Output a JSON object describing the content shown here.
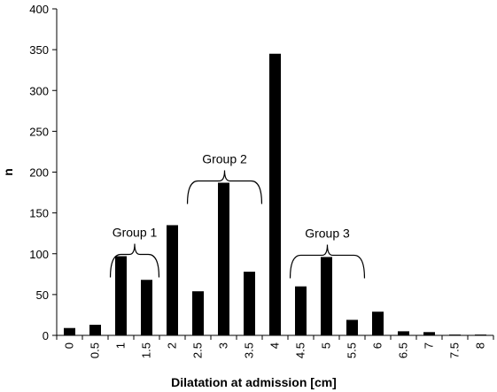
{
  "chart_data": {
    "type": "bar",
    "title": "",
    "xlabel": "Dilatation at admission [cm]",
    "ylabel": "n",
    "ylim": [
      0,
      400
    ],
    "yticks": [
      0,
      50,
      100,
      150,
      200,
      250,
      300,
      350,
      400
    ],
    "grid": false,
    "bar_color": "#000000",
    "categories": [
      "0",
      "0.5",
      "1",
      "1.5",
      "2",
      "2.5",
      "3",
      "3.5",
      "4",
      "4.5",
      "5",
      "5.5",
      "6",
      "6.5",
      "7",
      "7.5",
      "8"
    ],
    "values": [
      9,
      13,
      97,
      68,
      135,
      54,
      187,
      78,
      345,
      60,
      96,
      19,
      29,
      5,
      4,
      1,
      1
    ],
    "annotations": [
      {
        "label": "Group 1",
        "from": "1",
        "to": "1.5"
      },
      {
        "label": "Group 2",
        "from": "2.5",
        "to": "3.5"
      },
      {
        "label": "Group 3",
        "from": "4.5",
        "to": "5.5"
      }
    ]
  }
}
